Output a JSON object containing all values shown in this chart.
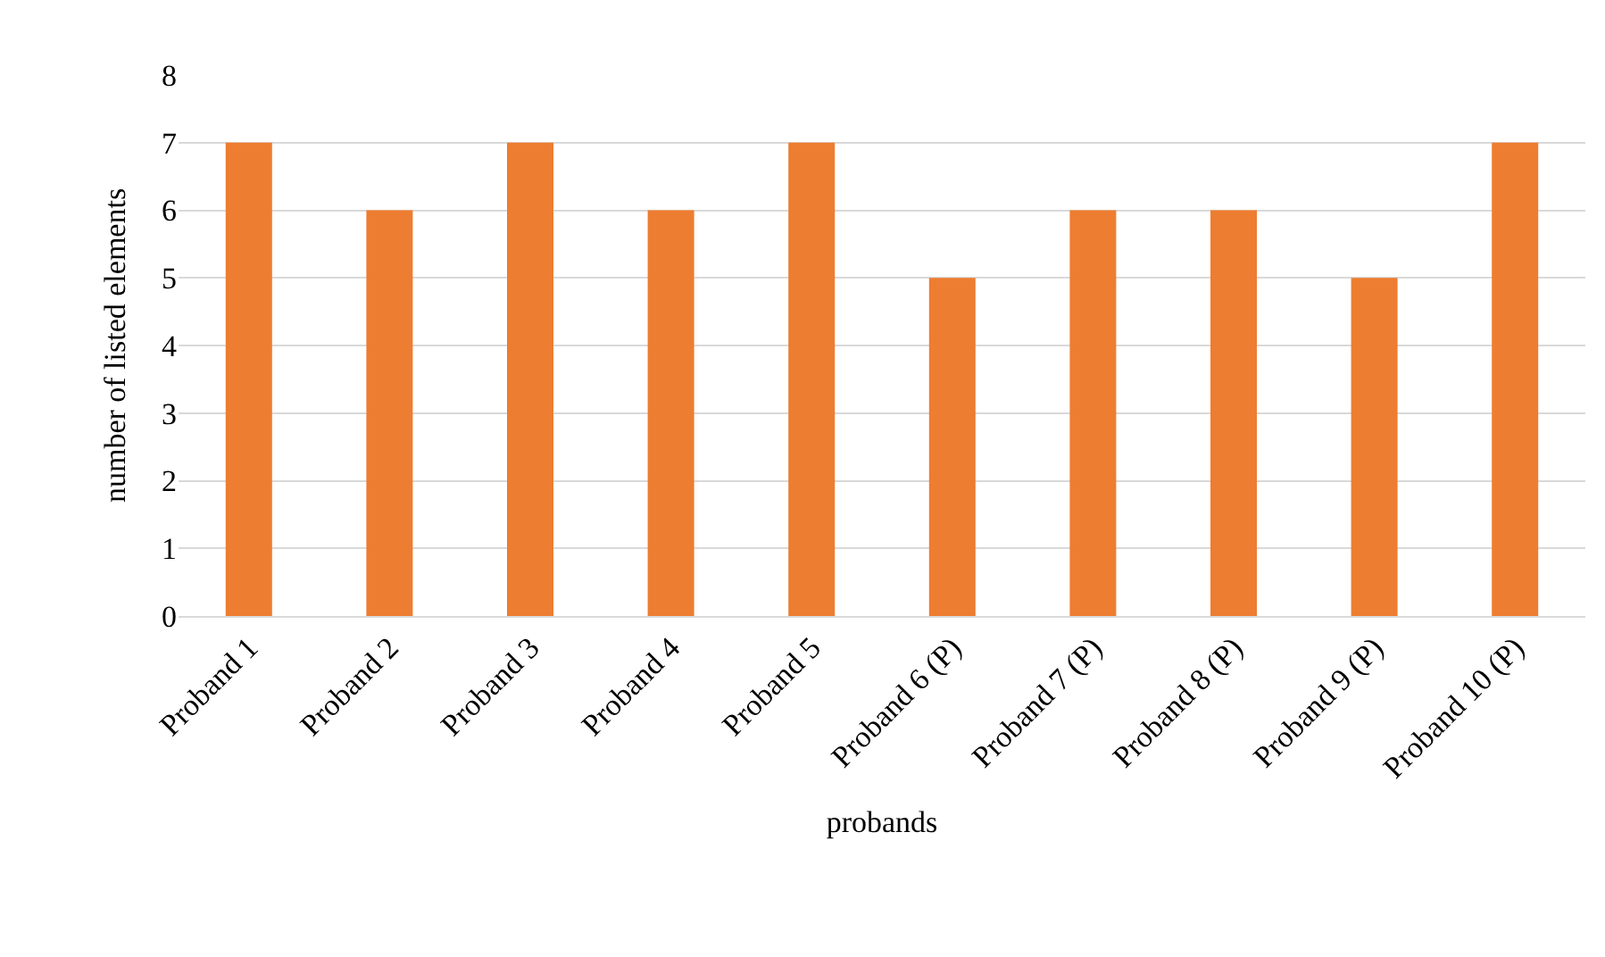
{
  "chart_data": {
    "type": "bar",
    "xlabel": "probands",
    "ylabel": "number of listed elements",
    "categories": [
      "Proband 1",
      "Proband 2",
      "Proband 3",
      "Proband 4",
      "Proband 5",
      "Proband 6 (P)",
      "Proband 7 (P)",
      "Proband 8 (P)",
      "Proband 9 (P)",
      "Proband 10 (P)"
    ],
    "values": [
      7,
      6,
      7,
      6,
      7,
      5,
      6,
      6,
      5,
      7
    ],
    "color": "#ed7d31",
    "ylim": [
      0,
      8
    ],
    "yticks": [
      0,
      1,
      2,
      3,
      4,
      5,
      6,
      7,
      8
    ],
    "grid": "y",
    "legend": false
  }
}
